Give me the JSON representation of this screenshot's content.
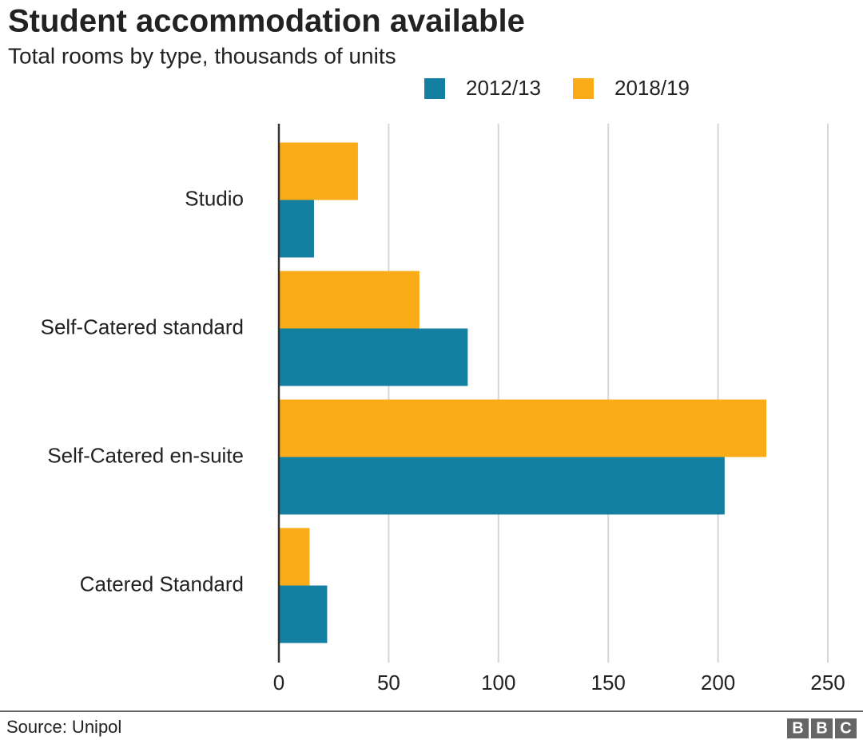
{
  "chart_data": {
    "type": "barh",
    "title": "Student accommodation available",
    "subtitle": "Total rooms by type, thousands of units",
    "categories": [
      "Studio",
      "Self-Catered standard",
      "Self-Catered en-suite",
      "Catered Standard"
    ],
    "series": [
      {
        "name": "2012/13",
        "color": "#1380a1",
        "values": [
          16,
          86,
          203,
          22
        ]
      },
      {
        "name": "2018/19",
        "color": "#faab18",
        "values": [
          36,
          64,
          222,
          14
        ]
      }
    ],
    "xlim": [
      0,
      250
    ],
    "xticks": [
      0,
      50,
      100,
      150,
      200,
      250
    ],
    "grid": true,
    "source": "Source: Unipol",
    "logo": [
      "B",
      "B",
      "C"
    ]
  }
}
